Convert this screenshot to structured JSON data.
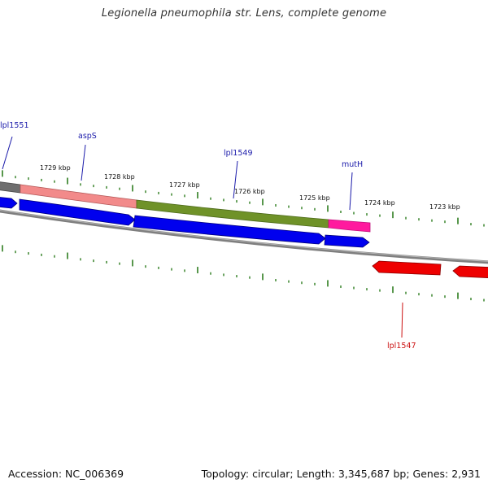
{
  "title": "Legionella pneumophila str. Lens, complete genome",
  "footer": {
    "accession": "Accession: NC_006369",
    "stats": "Topology: circular; Length: 3,345,687 bp; Genes: 2,931"
  },
  "colors": {
    "tick": "#2e7d1f",
    "backbone": "#7d7d7d",
    "forward_gene": "#0000ee",
    "reverse_gene": "#ee0000",
    "label_forward": "#1a1aaa",
    "label_reverse": "#cc1111",
    "feature_gray": "#666666",
    "feature_salmon": "#f08080",
    "feature_olive": "#6b8e23",
    "feature_magenta": "#ff1493"
  },
  "ruler_labels": [
    {
      "text": "1729 kbp"
    },
    {
      "text": "1728 kbp"
    },
    {
      "text": "1727 kbp"
    },
    {
      "text": "1726 kbp"
    },
    {
      "text": "1725 kbp"
    },
    {
      "text": "1724 kbp"
    },
    {
      "text": "1723 kbp"
    }
  ],
  "gene_labels": [
    {
      "name": "lpl1551",
      "strand": "forward"
    },
    {
      "name": "aspS",
      "strand": "forward"
    },
    {
      "name": "lpl1549",
      "strand": "forward"
    },
    {
      "name": "mutH",
      "strand": "forward"
    },
    {
      "name": "lpl1547",
      "strand": "reverse"
    }
  ]
}
